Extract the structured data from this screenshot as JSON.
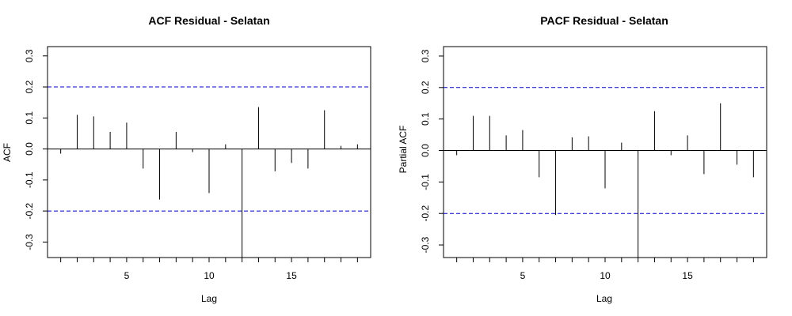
{
  "chart_data": [
    {
      "type": "bar",
      "title": "ACF Residual - Selatan",
      "xlabel": "Lag",
      "ylabel": "ACF",
      "xlim": [
        0.2,
        19.8
      ],
      "ylim": [
        -0.35,
        0.33
      ],
      "x_ticks": [
        5,
        10,
        15
      ],
      "x_ticks_unlabeled": [
        1,
        2,
        3,
        4,
        5,
        6,
        7,
        8,
        9,
        10,
        11,
        12,
        13,
        14,
        15,
        16,
        17,
        18,
        19
      ],
      "y_ticks": [
        -0.3,
        -0.2,
        -0.1,
        0.0,
        0.1,
        0.2,
        0.3
      ],
      "y_tick_labels": [
        "-0.3",
        "-0.2",
        "-0.1",
        "0.0",
        "0.1",
        "0.2",
        "0.3"
      ],
      "conf_limits": [
        0.2,
        -0.2
      ],
      "conf_color": "#0000cc",
      "x": [
        1,
        2,
        3,
        4,
        5,
        6,
        7,
        8,
        9,
        10,
        11,
        12,
        13,
        14,
        15,
        16,
        17,
        18,
        19
      ],
      "values": [
        -0.015,
        0.11,
        0.105,
        0.055,
        0.085,
        -0.063,
        -0.163,
        0.055,
        -0.01,
        -0.142,
        0.015,
        -0.35,
        0.135,
        -0.072,
        -0.045,
        -0.063,
        0.125,
        0.01,
        0.015
      ],
      "grid": false
    },
    {
      "type": "bar",
      "title": "PACF Residual - Selatan",
      "xlabel": "Lag",
      "ylabel": "Partial ACF",
      "xlim": [
        0.2,
        19.8
      ],
      "ylim": [
        -0.34,
        0.33
      ],
      "x_ticks": [
        5,
        10,
        15
      ],
      "x_ticks_unlabeled": [
        1,
        2,
        3,
        4,
        5,
        6,
        7,
        8,
        9,
        10,
        11,
        12,
        13,
        14,
        15,
        16,
        17,
        18,
        19
      ],
      "y_ticks": [
        -0.3,
        -0.2,
        -0.1,
        0.0,
        0.1,
        0.2,
        0.3
      ],
      "y_tick_labels": [
        "-0.3",
        "-0.2",
        "-0.1",
        "0.0",
        "0.1",
        "0.2",
        "0.3"
      ],
      "conf_limits": [
        0.2,
        -0.2
      ],
      "conf_color": "#0000cc",
      "x": [
        1,
        2,
        3,
        4,
        5,
        6,
        7,
        8,
        9,
        10,
        11,
        12,
        13,
        14,
        15,
        16,
        17,
        18,
        19
      ],
      "values": [
        -0.015,
        0.11,
        0.11,
        0.048,
        0.065,
        -0.085,
        -0.205,
        0.042,
        0.045,
        -0.12,
        0.025,
        -0.34,
        0.125,
        -0.015,
        0.048,
        -0.075,
        0.15,
        -0.045,
        -0.085
      ],
      "grid": false
    }
  ]
}
